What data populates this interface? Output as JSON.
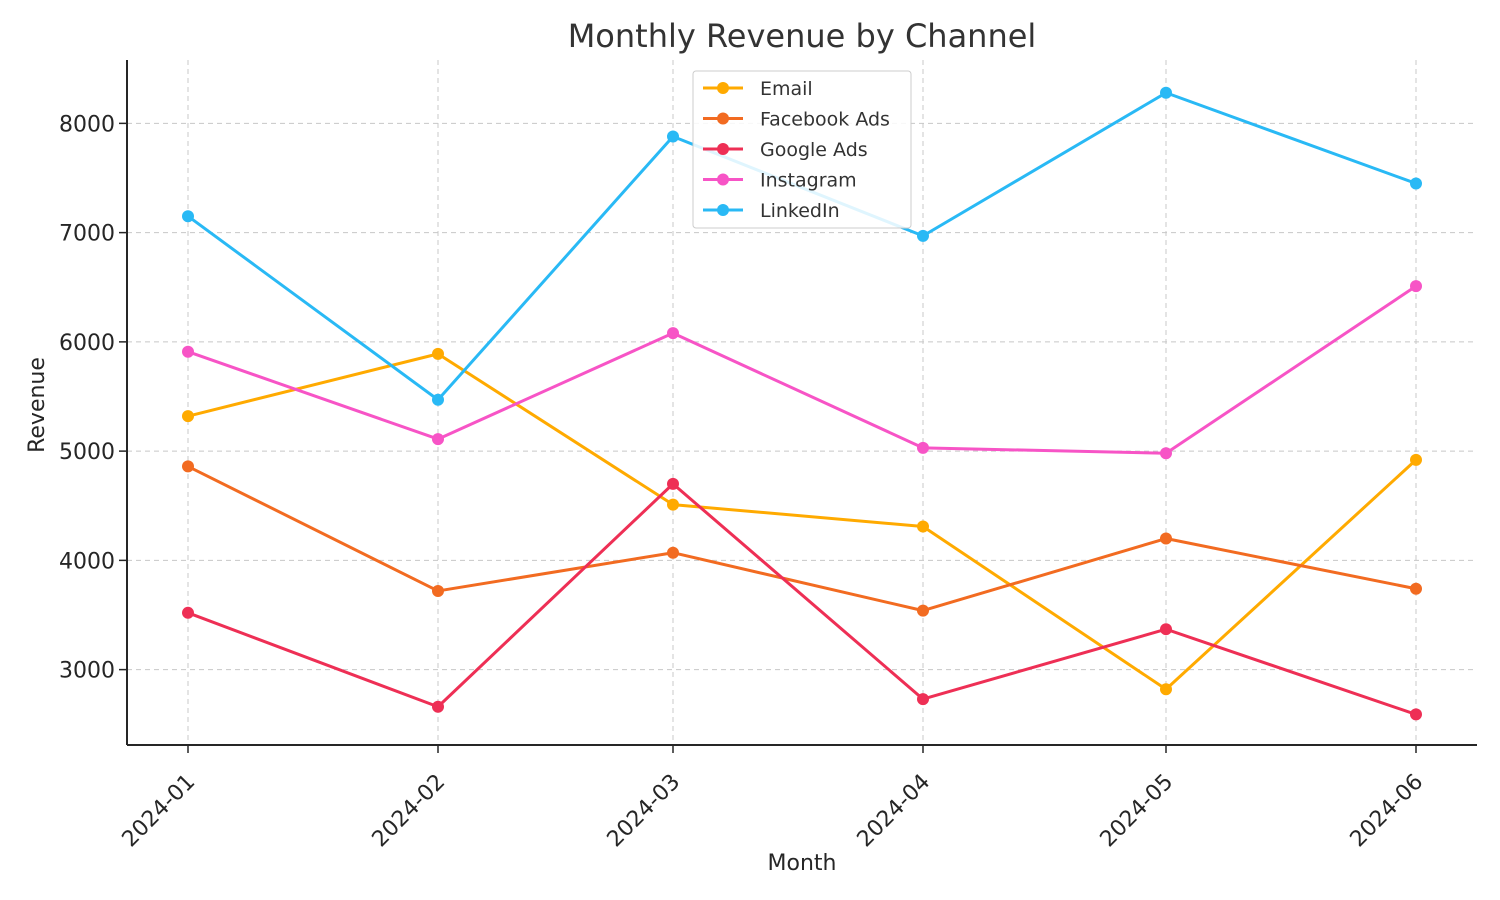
{
  "chart_data": {
    "type": "line",
    "title": "Monthly Revenue by Channel",
    "xlabel": "Month",
    "ylabel": "Revenue",
    "categories": [
      "2024-01",
      "2024-02",
      "2024-03",
      "2024-04",
      "2024-05",
      "2024-06"
    ],
    "ylim": [
      2310,
      8580
    ],
    "yticks": [
      3000,
      4000,
      5000,
      6000,
      7000,
      8000
    ],
    "grid": true,
    "legend_position": "top-center",
    "series": [
      {
        "name": "Email",
        "color": "#FFAA00",
        "values": [
          5320,
          5890,
          4510,
          4310,
          2820,
          4920
        ]
      },
      {
        "name": "Facebook Ads",
        "color": "#F26B21",
        "values": [
          4860,
          3720,
          4070,
          3540,
          4200,
          3740
        ]
      },
      {
        "name": "Google Ads",
        "color": "#EE2F55",
        "values": [
          3520,
          2660,
          4700,
          2730,
          3370,
          2590
        ]
      },
      {
        "name": "Instagram",
        "color": "#F754C6",
        "values": [
          5910,
          5110,
          6080,
          5030,
          4980,
          6510
        ]
      },
      {
        "name": "LinkedIn",
        "color": "#29B9F5",
        "values": [
          7150,
          5470,
          7880,
          6970,
          8280,
          7450
        ]
      }
    ]
  }
}
